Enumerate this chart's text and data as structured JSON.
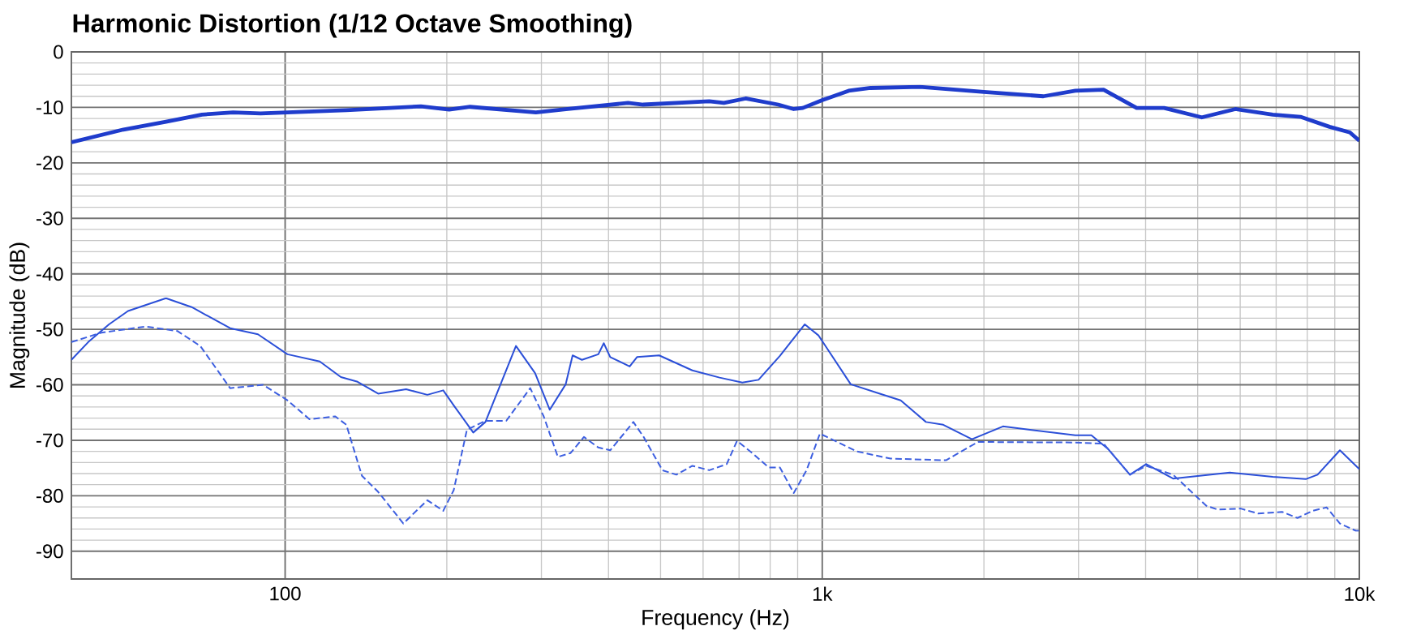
{
  "chart_data": {
    "type": "line",
    "title": "Harmonic Distortion (1/12 Octave Smoothing)",
    "xlabel": "Frequency (Hz)",
    "ylabel": "Magnitude (dB)",
    "log": "x",
    "grid": true,
    "xlim": [
      40,
      10000
    ],
    "ylim": [
      -95,
      0
    ],
    "xticks": [
      {
        "value": 100,
        "label": "100"
      },
      {
        "value": 1000,
        "label": "1k"
      },
      {
        "value": 10000,
        "label": "10k"
      }
    ],
    "yticks": [
      0,
      -10,
      -20,
      -30,
      -40,
      -50,
      -60,
      -70,
      -80,
      -90
    ],
    "series": [
      {
        "color": "#1f3ccc",
        "line_style": "solid",
        "x": [
          40,
          50,
          60,
          70,
          80,
          90,
          101,
          130,
          179,
          202,
          221,
          293,
          336,
          435,
          464,
          616,
          656,
          720,
          828,
          885,
          920,
          1000,
          1120,
          1230,
          1520,
          2000,
          2580,
          2960,
          3340,
          3850,
          4330,
          5090,
          5880,
          6900,
          7770,
          8800,
          9600,
          10000
        ],
        "values": [
          -16.3,
          -14,
          -12.6,
          -11.3,
          -10.9,
          -11.1,
          -10.9,
          -10.5,
          -9.8,
          -10.4,
          -9.9,
          -10.9,
          -10.3,
          -9.2,
          -9.5,
          -8.9,
          -9.2,
          -8.4,
          -9.5,
          -10.3,
          -10.1,
          -8.7,
          -7.0,
          -6.5,
          -6.3,
          -7.2,
          -8.0,
          -7.0,
          -6.8,
          -10.1,
          -10.1,
          -11.8,
          -10.3,
          -11.3,
          -11.7,
          -13.5,
          -14.5,
          -16.0
        ]
      },
      {
        "color": "#2b4fd8",
        "line_style": "solid",
        "x": [
          40,
          43,
          47,
          51,
          60,
          67,
          79,
          89,
          101,
          116,
          127,
          136,
          149,
          168,
          184,
          197,
          206,
          224,
          236,
          269,
          292,
          311,
          333,
          343,
          357,
          383,
          392,
          403,
          438,
          452,
          497,
          573,
          644,
          710,
          761,
          834,
          928,
          984,
          1130,
          1280,
          1400,
          1560,
          1680,
          1900,
          2170,
          2960,
          3170,
          3400,
          3740,
          4010,
          4500,
          5740,
          6900,
          7950,
          8360,
          9200,
          10000
        ],
        "values": [
          -55.5,
          -52.3,
          -49.1,
          -46.7,
          -44.4,
          -46.0,
          -49.8,
          -50.9,
          -54.5,
          -55.8,
          -58.6,
          -59.4,
          -61.6,
          -60.8,
          -61.8,
          -61.0,
          -63.7,
          -68.6,
          -66.7,
          -53.0,
          -57.9,
          -64.5,
          -59.9,
          -54.7,
          -55.5,
          -54.5,
          -52.5,
          -55.0,
          -56.7,
          -55.0,
          -54.7,
          -57.4,
          -58.7,
          -59.6,
          -59.1,
          -54.8,
          -49.1,
          -51.1,
          -59.9,
          -61.6,
          -62.8,
          -66.7,
          -67.2,
          -69.8,
          -67.5,
          -69.1,
          -69.1,
          -71.5,
          -76.2,
          -74.3,
          -76.9,
          -75.8,
          -76.6,
          -77.0,
          -76.2,
          -71.8,
          -75.2
        ]
      },
      {
        "color": "#3d5fe0",
        "line_style": "dashed",
        "x": [
          40,
          45.5,
          55,
          63,
          69.5,
          79,
          91,
          101,
          111,
          124,
          130,
          139,
          149,
          166,
          184,
          197,
          206,
          218,
          236,
          258,
          286,
          303,
          322,
          340,
          360,
          383,
          403,
          445,
          465,
          504,
          535,
          573,
          616,
          664,
          694,
          745,
          795,
          834,
          885,
          935,
          990,
          1160,
          1340,
          1700,
          1950,
          2960,
          3340,
          3740,
          4010,
          4500,
          5190,
          5450,
          6010,
          6480,
          7180,
          7670,
          8190,
          8690,
          9200,
          9850,
          10000
        ],
        "values": [
          -52.3,
          -50.6,
          -49.5,
          -50.3,
          -53.0,
          -60.6,
          -60.0,
          -62.8,
          -66.2,
          -65.7,
          -67.2,
          -76.4,
          -79.3,
          -85.0,
          -80.8,
          -82.7,
          -79.0,
          -68.1,
          -66.5,
          -66.5,
          -60.6,
          -65.7,
          -73.0,
          -72.3,
          -69.4,
          -71.3,
          -71.8,
          -66.7,
          -69.4,
          -75.4,
          -76.2,
          -74.6,
          -75.4,
          -74.3,
          -70.1,
          -72.5,
          -74.9,
          -74.9,
          -79.5,
          -75.4,
          -68.8,
          -72.0,
          -73.3,
          -73.6,
          -70.3,
          -70.4,
          -70.6,
          -76.2,
          -74.6,
          -76.2,
          -81.8,
          -82.5,
          -82.3,
          -83.2,
          -82.9,
          -84.0,
          -82.7,
          -82.1,
          -85.0,
          -86.3,
          -86.3
        ]
      }
    ]
  }
}
